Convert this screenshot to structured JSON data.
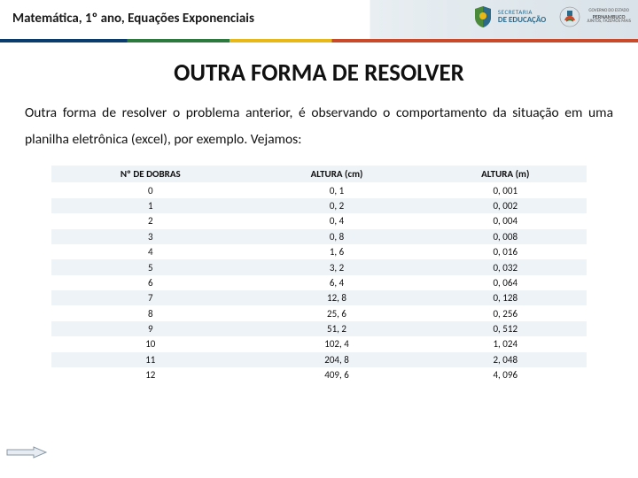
{
  "header": {
    "title": "Matemática, 1º ano, Equações Exponenciais",
    "stripe_colors": [
      "#0a3c6e",
      "#2d7a3f",
      "#e8b818",
      "#c94a2a"
    ],
    "logo1": {
      "top": "SECRETARIA",
      "bottom": "DE EDUCAÇÃO"
    },
    "logo2": {
      "line1": "GOVERNO DO ESTADO",
      "line2": "PERNAMBUCO",
      "line3": "JUNTOS, FAZEMOS MAIS"
    }
  },
  "title": "OUTRA FORMA DE RESOLVER",
  "paragraph": "Outra forma de resolver o problema anterior, é observando o comportamento da situação em uma planilha eletrônica (excel), por exemplo. Vejamos:",
  "table": {
    "columns": [
      "Nº DE DOBRAS",
      "ALTURA (cm)",
      "ALTURA (m)"
    ],
    "rows": [
      [
        "0",
        "0, 1",
        "0, 001"
      ],
      [
        "1",
        "0, 2",
        "0, 002"
      ],
      [
        "2",
        "0, 4",
        "0, 004"
      ],
      [
        "3",
        "0, 8",
        "0, 008"
      ],
      [
        "4",
        "1, 6",
        "0, 016"
      ],
      [
        "5",
        "3, 2",
        "0, 032"
      ],
      [
        "6",
        "6, 4",
        "0, 064"
      ],
      [
        "7",
        "12, 8",
        "0, 128"
      ],
      [
        "8",
        "25, 6",
        "0, 256"
      ],
      [
        "9",
        "51, 2",
        "0, 512"
      ],
      [
        "10",
        "102, 4",
        "1, 024"
      ],
      [
        "11",
        "204, 8",
        "2, 048"
      ],
      [
        "12",
        "409, 6",
        "4, 096"
      ]
    ],
    "header_bg": "#eef3f7",
    "row_even_bg": "#eef3f7",
    "row_odd_bg": "#ffffff",
    "font_size": 11
  },
  "arrow": {
    "stroke": "#8a9aa6",
    "fill": "#e6ecf1"
  }
}
